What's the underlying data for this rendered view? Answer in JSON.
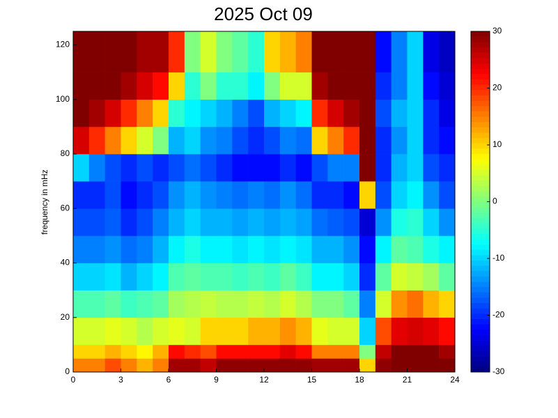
{
  "chart_data": {
    "type": "heatmap",
    "title": "2025 Oct 09",
    "y_label": "frequency in mHz",
    "colormap": "jet",
    "xlim": [
      0,
      24
    ],
    "xticks": [
      0,
      3,
      6,
      9,
      12,
      15,
      18,
      21,
      24
    ],
    "ylim": [
      0,
      125
    ],
    "yticks": [
      0,
      20,
      40,
      60,
      80,
      100,
      120
    ],
    "clim": [
      -30,
      30
    ],
    "cticks": [
      -30,
      -20,
      -10,
      0,
      10,
      20,
      30
    ],
    "xbins": [
      0,
      1,
      2,
      3,
      4,
      5,
      6,
      7,
      8,
      9,
      10,
      11,
      12,
      13,
      14,
      15,
      16,
      17,
      18,
      19,
      20,
      21,
      22,
      23,
      24
    ],
    "ybins": [
      0,
      5,
      10,
      20,
      30,
      40,
      50,
      60,
      70,
      80,
      90,
      100,
      110,
      125
    ],
    "z": [
      [
        15,
        15,
        18,
        15,
        12,
        15,
        28,
        28,
        26,
        29,
        29,
        29,
        29,
        29,
        29,
        28,
        28,
        28,
        10,
        29,
        30,
        30,
        30,
        30
      ],
      [
        10,
        10,
        12,
        10,
        8,
        12,
        22,
        20,
        18,
        22,
        22,
        22,
        22,
        24,
        22,
        15,
        15,
        15,
        0,
        26,
        30,
        30,
        30,
        28
      ],
      [
        5,
        5,
        6,
        5,
        3,
        5,
        6,
        5,
        10,
        10,
        10,
        12,
        12,
        14,
        12,
        6,
        5,
        5,
        -10,
        18,
        24,
        25,
        24,
        22
      ],
      [
        -3,
        -3,
        -2,
        -4,
        -3,
        -2,
        2,
        3,
        4,
        3,
        3,
        4,
        3,
        5,
        3,
        0,
        0,
        -2,
        -15,
        5,
        14,
        16,
        12,
        10
      ],
      [
        -10,
        -10,
        -9,
        -12,
        -10,
        -8,
        -3,
        -2,
        -3,
        -3,
        -4,
        -3,
        -4,
        -2,
        -4,
        -8,
        -8,
        -10,
        -20,
        -2,
        5,
        4,
        2,
        -2
      ],
      [
        -15,
        -15,
        -14,
        -16,
        -15,
        -12,
        -8,
        -6,
        -8,
        -8,
        -9,
        -8,
        -9,
        -8,
        -9,
        -12,
        -12,
        -14,
        -22,
        -8,
        -2,
        -3,
        -6,
        -8
      ],
      [
        -18,
        -18,
        -17,
        -20,
        -18,
        -15,
        -12,
        -10,
        -12,
        -12,
        -13,
        -12,
        -13,
        -12,
        -13,
        -16,
        -17,
        -18,
        -25,
        -14,
        -6,
        -5,
        -10,
        -14
      ],
      [
        -20,
        -20,
        -18,
        -22,
        -20,
        -18,
        -14,
        -12,
        -14,
        -15,
        -16,
        -15,
        -16,
        -14,
        -16,
        -20,
        -20,
        -22,
        10,
        -18,
        -10,
        -8,
        -14,
        -18
      ],
      [
        -10,
        -15,
        -18,
        -20,
        -18,
        -20,
        -18,
        -16,
        -18,
        -20,
        -22,
        -22,
        -22,
        -20,
        -22,
        -18,
        -15,
        -15,
        30,
        -20,
        -12,
        -10,
        -18,
        -20
      ],
      [
        25,
        20,
        15,
        10,
        5,
        0,
        -12,
        -10,
        -14,
        -15,
        -18,
        -20,
        -18,
        -15,
        -16,
        10,
        15,
        20,
        30,
        -20,
        -14,
        -10,
        -20,
        -22
      ],
      [
        30,
        28,
        25,
        20,
        15,
        10,
        -5,
        -8,
        -10,
        -12,
        -15,
        -18,
        -12,
        -10,
        -8,
        20,
        25,
        28,
        30,
        -18,
        -12,
        -10,
        -20,
        -24
      ],
      [
        30,
        30,
        30,
        28,
        25,
        22,
        10,
        -5,
        0,
        -5,
        -5,
        -8,
        0,
        5,
        5,
        28,
        30,
        30,
        30,
        -20,
        -15,
        -10,
        -22,
        -25
      ],
      [
        30,
        30,
        30,
        30,
        28,
        28,
        20,
        0,
        5,
        0,
        -2,
        -5,
        10,
        12,
        15,
        30,
        30,
        30,
        30,
        -22,
        -15,
        -10,
        -24,
        -26
      ]
    ]
  }
}
